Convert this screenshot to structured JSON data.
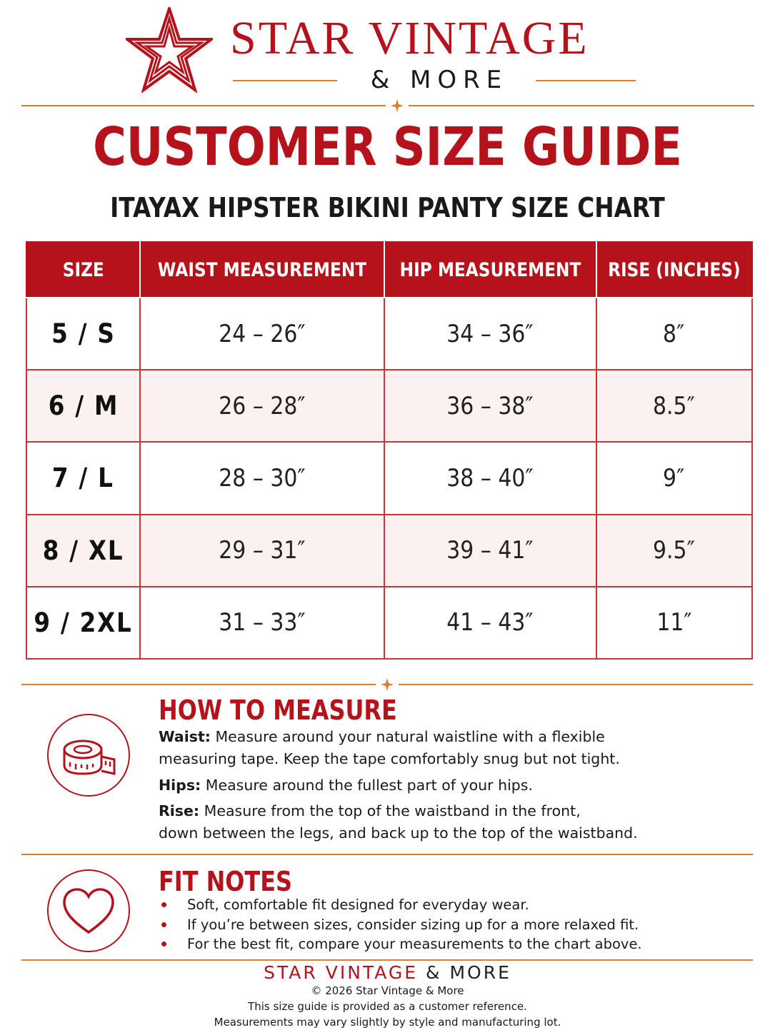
{
  "brand": {
    "name": "STAR VINTAGE",
    "tagline": "& MORE",
    "icon": "star-icon",
    "accent_color": "#b5121b",
    "rule_color": "#e07c2a"
  },
  "header": {
    "title": "CUSTOMER SIZE GUIDE",
    "subtitle": "ITAYAX HIPSTER BIKINI PANTY SIZE CHART"
  },
  "table": {
    "columns": [
      "SIZE",
      "WAIST MEASUREMENT",
      "HIP MEASUREMENT",
      "RISE (INCHES)"
    ],
    "rows": [
      [
        "5 / S",
        "24 – 26″",
        "34 – 36″",
        "8″"
      ],
      [
        "6 / M",
        "26 – 28″",
        "36 – 38″",
        "8.5″"
      ],
      [
        "7 / L",
        "28 – 30″",
        "38 – 40″",
        "9″"
      ],
      [
        "8 / XL",
        "29 – 31″",
        "39 – 41″",
        "9.5″"
      ],
      [
        "9 / 2XL",
        "31 – 33″",
        "41 – 43″",
        "11″"
      ]
    ]
  },
  "how_to_measure": {
    "heading": "HOW TO MEASURE",
    "icon": "measuring-tape-icon",
    "waist_label": "Waist:",
    "waist_line1": "Measure around your natural waistline with a flexible",
    "waist_line2": "measuring tape. Keep the tape comfortably snug but not tight.",
    "hips_label": "Hips:",
    "hips_text": "Measure around the fullest part of your hips.",
    "rise_label": "Rise:",
    "rise_line1": "Measure from the top of the waistband in the front,",
    "rise_line2": "down between the legs, and back up to the top of the waistband."
  },
  "fit_notes": {
    "heading": "FIT NOTES",
    "icon": "heart-icon",
    "items": [
      "Soft, comfortable fit designed for everyday wear.",
      "If you’re between sizes, consider sizing up for a more relaxed fit.",
      "For the best fit, compare your measurements to the chart above."
    ]
  },
  "footer": {
    "brand_name": "STAR VINTAGE",
    "brand_suffix": "& MORE",
    "copyright": "© 2026 Star Vintage & More",
    "note1": "This size guide is provided as a customer reference.",
    "note2": "Measurements may vary slightly by style and manufacturing lot."
  }
}
